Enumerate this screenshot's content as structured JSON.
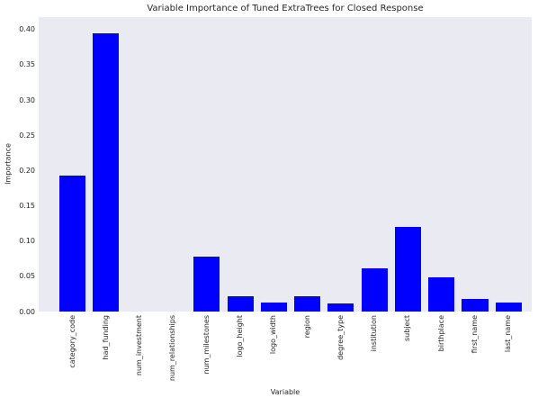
{
  "chart_data": {
    "type": "bar",
    "title": "Variable Importance of Tuned ExtraTrees for Closed Response",
    "xlabel": "Variable",
    "ylabel": "Importance",
    "categories": [
      "category_code",
      "had_funding",
      "num_investment",
      "num_relationships",
      "num_milestones",
      "logo_height",
      "logo_width",
      "region",
      "degree_type",
      "institution",
      "subject",
      "birthplace",
      "first_name",
      "last_name"
    ],
    "values": [
      0.193,
      0.395,
      0.0,
      0.0,
      0.078,
      0.022,
      0.013,
      0.022,
      0.012,
      0.061,
      0.12,
      0.049,
      0.018,
      0.013
    ],
    "ytick_labels": [
      "0.00",
      "0.05",
      "0.10",
      "0.15",
      "0.20",
      "0.25",
      "0.30",
      "0.35",
      "0.40"
    ],
    "ylim": [
      0,
      0.4175
    ],
    "grid": false,
    "legend": "none",
    "bar_width_fraction": 0.8,
    "colors": {
      "bar": "#0000ff",
      "plot_background": "#eaeaf2",
      "figure_background": "#ffffff",
      "text": "#262626"
    }
  }
}
